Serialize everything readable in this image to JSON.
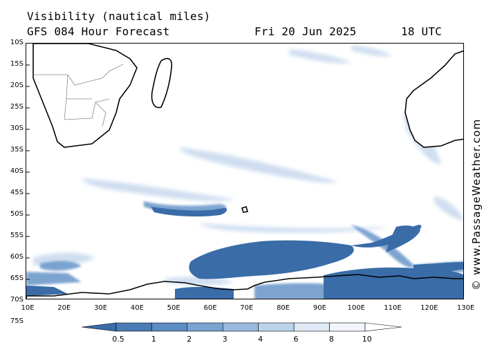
{
  "header": {
    "title": "Visibility (nautical miles)",
    "model_line": "GFS 084 Hour Forecast",
    "date": "Fri 20 Jun 2025",
    "time": "18 UTC"
  },
  "credit": "© www.PassageWeather.com",
  "map": {
    "lat_labels": [
      "10S",
      "15S",
      "20S",
      "25S",
      "30S",
      "35S",
      "40S",
      "45S",
      "50S",
      "55S",
      "60S",
      "65S",
      "70S",
      "75S"
    ],
    "lon_labels": [
      "10E",
      "20E",
      "30E",
      "40E",
      "50E",
      "60E",
      "70E",
      "80E",
      "90E",
      "100E",
      "110E",
      "120E",
      "130E"
    ],
    "lat_range": [
      -75,
      -10
    ],
    "lon_range": [
      10,
      130
    ]
  },
  "legend": {
    "labels": [
      "0.5",
      "1",
      "2",
      "3",
      "4",
      "6",
      "8",
      "10"
    ],
    "colors": [
      "#3a6ca7",
      "#4a7bb5",
      "#5d8cc2",
      "#7aa3d0",
      "#98badd",
      "#bcd3ea",
      "#dfe9f5",
      "#f2f6fb",
      "#ffffff"
    ]
  },
  "colors": {
    "fog_dark": "#3a6ca7",
    "fog_mid": "#6f9bcc",
    "fog_light": "#c6d8ee",
    "land_border": "#888888",
    "coast": "#000000"
  }
}
